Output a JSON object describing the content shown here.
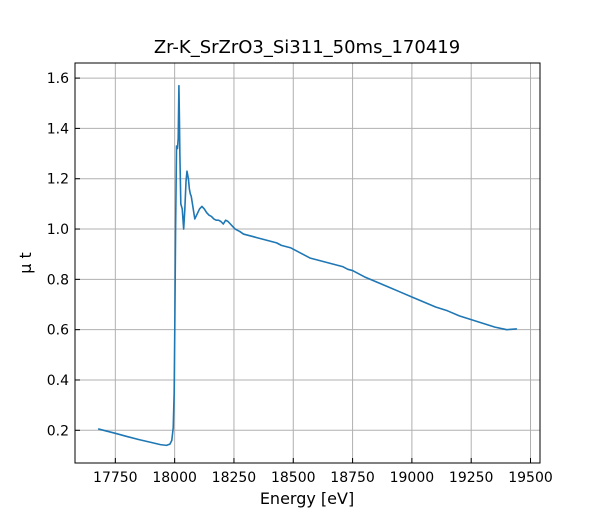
{
  "chart_data": {
    "type": "line",
    "title": "Zr-K_SrZrO3_Si311_50ms_170419",
    "xlabel": "Energy [eV]",
    "ylabel": "μ t",
    "xlim": [
      17580,
      19540
    ],
    "ylim": [
      0.07,
      1.66
    ],
    "xticks": [
      17750,
      18000,
      18250,
      18500,
      18750,
      19000,
      19250,
      19500
    ],
    "yticks": [
      0.2,
      0.4,
      0.6,
      0.8,
      1.0,
      1.2,
      1.4,
      1.6
    ],
    "grid": true,
    "colors": {
      "series": "#1f77b4"
    },
    "series": [
      {
        "x": [
          17680,
          17750,
          17800,
          17850,
          17900,
          17940,
          17965,
          17980,
          17988,
          17994,
          17998,
          18001,
          18004,
          18008,
          18012,
          18015,
          18018,
          18020,
          18022,
          18026,
          18032,
          18038,
          18043,
          18048,
          18052,
          18058,
          18062,
          18066,
          18070,
          18075,
          18085,
          18095,
          18105,
          18115,
          18125,
          18135,
          18145,
          18155,
          18165,
          18175,
          18185,
          18195,
          18205,
          18215,
          18225,
          18235,
          18245,
          18255,
          18265,
          18275,
          18290,
          18310,
          18330,
          18350,
          18370,
          18390,
          18410,
          18430,
          18450,
          18470,
          18490,
          18510,
          18530,
          18550,
          18570,
          18590,
          18610,
          18630,
          18650,
          18670,
          18690,
          18710,
          18730,
          18750,
          18800,
          18850,
          18900,
          18950,
          19000,
          19050,
          19100,
          19150,
          19200,
          19250,
          19300,
          19350,
          19400,
          19440
        ],
        "y": [
          0.205,
          0.188,
          0.175,
          0.163,
          0.152,
          0.143,
          0.14,
          0.145,
          0.16,
          0.21,
          0.35,
          0.65,
          1.0,
          1.33,
          1.32,
          1.36,
          1.57,
          1.45,
          1.3,
          1.1,
          1.08,
          1.0,
          1.08,
          1.19,
          1.23,
          1.2,
          1.16,
          1.14,
          1.13,
          1.1,
          1.04,
          1.06,
          1.08,
          1.09,
          1.08,
          1.065,
          1.055,
          1.05,
          1.04,
          1.035,
          1.035,
          1.03,
          1.02,
          1.035,
          1.03,
          1.02,
          1.01,
          1.0,
          0.995,
          0.99,
          0.98,
          0.975,
          0.97,
          0.965,
          0.96,
          0.955,
          0.95,
          0.945,
          0.935,
          0.93,
          0.925,
          0.915,
          0.905,
          0.895,
          0.885,
          0.88,
          0.875,
          0.87,
          0.865,
          0.86,
          0.855,
          0.85,
          0.84,
          0.835,
          0.81,
          0.79,
          0.77,
          0.75,
          0.73,
          0.71,
          0.69,
          0.675,
          0.655,
          0.64,
          0.625,
          0.61,
          0.6,
          0.603
        ]
      }
    ]
  }
}
